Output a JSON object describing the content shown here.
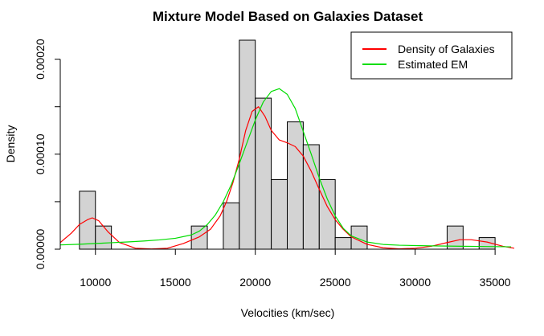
{
  "chart_data": {
    "type": "histogram",
    "title": "Mixture Model Based on Galaxies Dataset",
    "xlabel": "Velocities (km/sec)",
    "ylabel": "Density",
    "xlim": [
      7800,
      36200
    ],
    "ylim": [
      0,
      0.00022
    ],
    "x_ticks": [
      10000,
      15000,
      20000,
      25000,
      30000,
      35000
    ],
    "x_tick_labels": [
      "10000",
      "15000",
      "20000",
      "25000",
      "30000",
      "35000"
    ],
    "y_ticks": [
      0,
      5e-05,
      0.0001,
      0.00015,
      0.0002
    ],
    "y_tick_labels": [
      "0.00000",
      "",
      "0.00010",
      "",
      "0.00020"
    ],
    "bin_width": 1000,
    "bins": [
      {
        "start": 9000,
        "value": 6.1e-05
      },
      {
        "start": 10000,
        "value": 2.44e-05
      },
      {
        "start": 16000,
        "value": 2.44e-05
      },
      {
        "start": 18000,
        "value": 4.88e-05
      },
      {
        "start": 19000,
        "value": 0.00022
      },
      {
        "start": 20000,
        "value": 0.000159
      },
      {
        "start": 21000,
        "value": 7.32e-05
      },
      {
        "start": 22000,
        "value": 0.000134
      },
      {
        "start": 23000,
        "value": 0.00011
      },
      {
        "start": 24000,
        "value": 7.32e-05
      },
      {
        "start": 25000,
        "value": 1.22e-05
      },
      {
        "start": 26000,
        "value": 2.44e-05
      },
      {
        "start": 32000,
        "value": 2.44e-05
      },
      {
        "start": 34000,
        "value": 1.22e-05
      }
    ],
    "bar_fill": "#d3d3d3",
    "bar_stroke": "#000000",
    "series": [
      {
        "name": "Density of Galaxies",
        "color": "#ff0000",
        "x": [
          7800,
          8500,
          9000,
          9500,
          9800,
          10200,
          10800,
          11500,
          12500,
          13500,
          14500,
          15500,
          16500,
          17200,
          17800,
          18200,
          18600,
          19000,
          19400,
          19800,
          20200,
          20600,
          21000,
          21500,
          22000,
          22500,
          23000,
          23500,
          24000,
          24500,
          25000,
          25500,
          26000,
          27000,
          28000,
          29000,
          30000,
          31000,
          32000,
          32800,
          33500,
          34500,
          35500,
          36200
        ],
        "y": [
          7e-06,
          1.7e-05,
          2.6e-05,
          3.1e-05,
          3.3e-05,
          3e-05,
          1.8e-05,
          7e-06,
          1e-06,
          2e-07,
          1e-06,
          6e-06,
          1.3e-05,
          2.1e-05,
          3.5e-05,
          5e-05,
          7e-05,
          9.5e-05,
          0.000125,
          0.000145,
          0.00015,
          0.00014,
          0.000125,
          0.000115,
          0.000112,
          0.000108,
          9.8e-05,
          8.2e-05,
          6.3e-05,
          4.5e-05,
          3.1e-05,
          2.1e-05,
          1.3e-05,
          5e-06,
          1.5e-06,
          3e-07,
          1e-06,
          3e-06,
          7e-06,
          1e-05,
          1e-05,
          7.5e-06,
          3e-06,
          1e-06
        ]
      },
      {
        "name": "Estimated EM",
        "color": "#00dd00",
        "x": [
          7800,
          9000,
          10000,
          11000,
          12000,
          13000,
          14000,
          15000,
          16000,
          16500,
          17000,
          17500,
          18000,
          18500,
          19000,
          19500,
          20000,
          20500,
          21000,
          21500,
          22000,
          22500,
          23000,
          23500,
          24000,
          24500,
          25000,
          25500,
          26000,
          27000,
          28000,
          29000,
          30000,
          31000,
          32000,
          33000,
          34000,
          35000,
          36000
        ],
        "y": [
          4.5e-06,
          5.2e-06,
          6e-06,
          6.8e-06,
          7.6e-06,
          8.6e-06,
          9.8e-06,
          1.15e-05,
          1.5e-05,
          1.9e-05,
          2.6e-05,
          3.6e-05,
          5e-05,
          6.8e-05,
          9e-05,
          0.000113,
          0.000136,
          0.000155,
          0.000166,
          0.000169,
          0.000163,
          0.000148,
          0.000124,
          0.0001,
          7.5e-05,
          5.3e-05,
          3.5e-05,
          2.2e-05,
          1.4e-05,
          7.5e-06,
          5e-06,
          4.2e-06,
          3.8e-06,
          3.5e-06,
          3.3e-06,
          3.1e-06,
          2.9e-06,
          2.7e-06,
          2.5e-06
        ]
      }
    ],
    "legend": {
      "position": "top-right",
      "entries": [
        {
          "label": "Density of Galaxies",
          "color": "#ff0000"
        },
        {
          "label": "Estimated EM",
          "color": "#00dd00"
        }
      ]
    },
    "grid": false
  }
}
